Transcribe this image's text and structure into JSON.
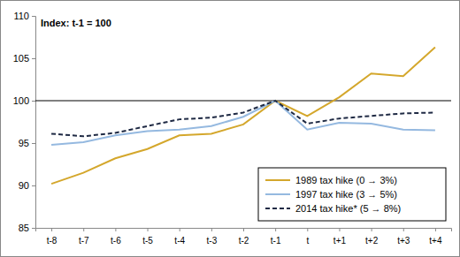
{
  "chart_data": {
    "type": "line",
    "annotation": "Index: t-1 = 100",
    "categories": [
      "t-8",
      "t-7",
      "t-6",
      "t-5",
      "t-4",
      "t-3",
      "t-2",
      "t-1",
      "t",
      "t+1",
      "t+2",
      "t+3",
      "t+4"
    ],
    "series": [
      {
        "name": "1989 tax hike (0 → 3%)",
        "color": "#d4a72c",
        "line_style": "solid",
        "values": [
          90.2,
          91.5,
          93.2,
          94.3,
          95.9,
          96.1,
          97.2,
          100,
          98.2,
          100.4,
          103.2,
          102.9,
          106.3
        ]
      },
      {
        "name": "1997 tax hike (3 → 5%)",
        "color": "#95b9e0",
        "line_style": "solid",
        "values": [
          94.8,
          95.1,
          95.9,
          96.4,
          96.6,
          97.0,
          98.1,
          100,
          96.6,
          97.4,
          97.3,
          96.6,
          96.5
        ]
      },
      {
        "name": "2014 tax hike* (5 → 8%)",
        "color": "#1f2a44",
        "line_style": "dashed",
        "values": [
          96.1,
          95.8,
          96.2,
          97.0,
          97.8,
          98.0,
          98.6,
          100,
          97.3,
          97.9,
          98.2,
          98.5,
          98.6
        ]
      }
    ],
    "reference_line": 100,
    "ylim": [
      85,
      110
    ],
    "yticks": [
      85,
      90,
      95,
      100,
      105,
      110
    ],
    "grid": false,
    "legend": "lower right"
  }
}
